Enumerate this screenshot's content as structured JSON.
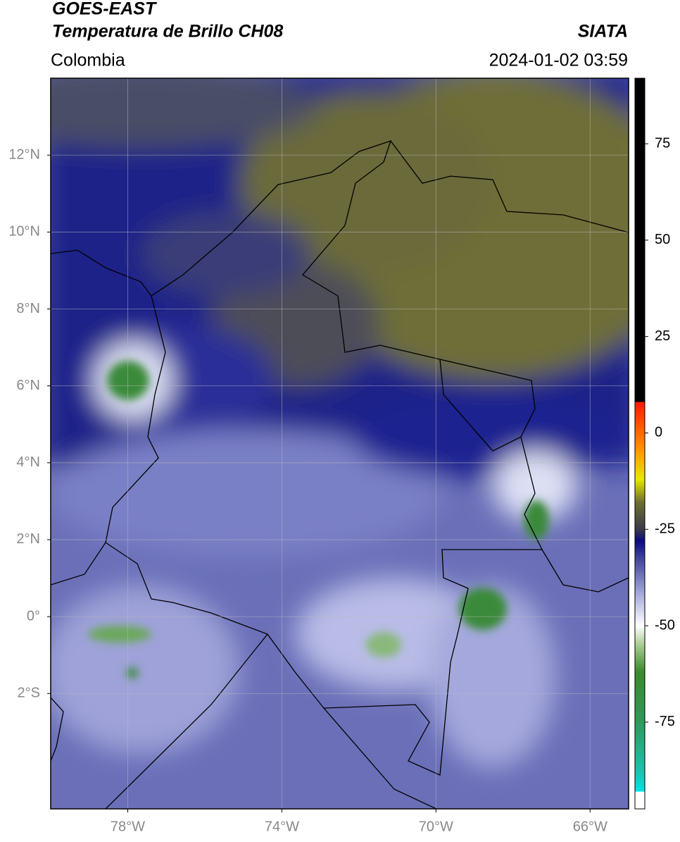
{
  "header": {
    "title_line1": "GOES-EAST",
    "title_line2": "Temperatura de Brillo CH08",
    "region": "Colombia",
    "source": "SIATA",
    "datetime": "2024-01-02 03:59"
  },
  "map": {
    "lon_range": [
      -80,
      -65
    ],
    "lat_range": [
      -5,
      14
    ],
    "grid": true,
    "lon_ticks": [
      {
        "value": -78,
        "label": "78°W"
      },
      {
        "value": -74,
        "label": "74°W"
      },
      {
        "value": -70,
        "label": "70°W"
      },
      {
        "value": -66,
        "label": "66°W"
      }
    ],
    "lat_ticks": [
      {
        "value": 12,
        "label": "12°N"
      },
      {
        "value": 10,
        "label": "10°N"
      },
      {
        "value": 8,
        "label": "8°N"
      },
      {
        "value": 6,
        "label": "6°N"
      },
      {
        "value": 4,
        "label": "4°N"
      },
      {
        "value": 2,
        "label": "2°N"
      },
      {
        "value": 0,
        "label": "0°"
      },
      {
        "value": -2,
        "label": "2°S"
      }
    ]
  },
  "colorbar": {
    "range": [
      -97.5,
      92
    ],
    "ticks": [
      75,
      50,
      25,
      0,
      -25,
      -50,
      -75
    ],
    "stops": [
      {
        "value": -97.5,
        "color": "#ffffff"
      },
      {
        "value": -93,
        "color": "#ffffff"
      },
      {
        "value": -93,
        "color": "#00e5e5"
      },
      {
        "value": -88,
        "color": "#20c0b0"
      },
      {
        "value": -75,
        "color": "#2e9a5a"
      },
      {
        "value": -62,
        "color": "#3a8a2a"
      },
      {
        "value": -55,
        "color": "#a8cc90"
      },
      {
        "value": -50,
        "color": "#ffffff"
      },
      {
        "value": -42,
        "color": "#a8acdc"
      },
      {
        "value": -32,
        "color": "#3a3e9a"
      },
      {
        "value": -28,
        "color": "#0a0a80"
      },
      {
        "value": -25,
        "color": "#3a3a4a"
      },
      {
        "value": -18,
        "color": "#6e6e30"
      },
      {
        "value": -12,
        "color": "#e8e800"
      },
      {
        "value": -5,
        "color": "#ff9a00"
      },
      {
        "value": 8,
        "color": "#ff1a00"
      },
      {
        "value": 8,
        "color": "#000000"
      },
      {
        "value": 92,
        "color": "#000000"
      }
    ]
  }
}
